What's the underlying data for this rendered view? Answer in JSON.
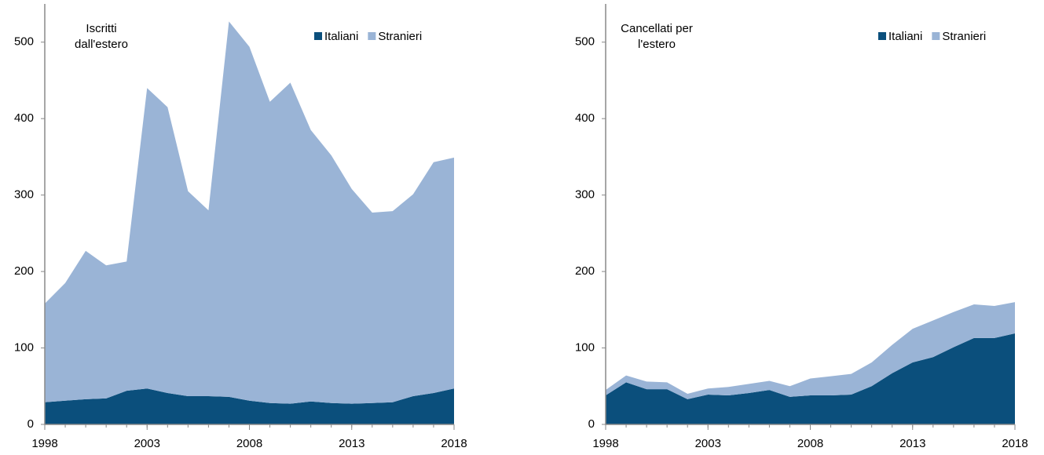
{
  "chart_data": [
    {
      "type": "area",
      "stacked": true,
      "title": [
        "Iscritti",
        "dall'estero"
      ],
      "x": [
        1998,
        1999,
        2000,
        2001,
        2002,
        2003,
        2004,
        2005,
        2006,
        2007,
        2008,
        2009,
        2010,
        2011,
        2012,
        2013,
        2014,
        2015,
        2016,
        2017,
        2018
      ],
      "series": [
        {
          "name": "Italiani",
          "color": "#0b4f7c",
          "values": [
            29,
            31,
            33,
            34,
            44,
            47,
            41,
            37,
            37,
            36,
            31,
            28,
            27,
            30,
            28,
            27,
            28,
            29,
            37,
            41,
            47
          ]
        },
        {
          "name": "Stranieri",
          "color": "#9ab4d6",
          "values": [
            129,
            154,
            194,
            174,
            169,
            393,
            374,
            268,
            243,
            491,
            463,
            394,
            420,
            355,
            324,
            281,
            249,
            250,
            264,
            302,
            302
          ]
        }
      ],
      "xlim": [
        1998,
        2018
      ],
      "xticks": [
        1998,
        2003,
        2008,
        2013,
        2018
      ],
      "ylim": [
        0,
        550
      ],
      "yticks": [
        0,
        100,
        200,
        300,
        400,
        500
      ],
      "legend": "top-right"
    },
    {
      "type": "area",
      "stacked": true,
      "title": [
        "Cancellati per",
        "l'estero"
      ],
      "x": [
        1998,
        1999,
        2000,
        2001,
        2002,
        2003,
        2004,
        2005,
        2006,
        2007,
        2008,
        2009,
        2010,
        2011,
        2012,
        2013,
        2014,
        2015,
        2016,
        2017,
        2018
      ],
      "series": [
        {
          "name": "Italiani",
          "color": "#0b4f7c",
          "values": [
            38,
            55,
            46,
            46,
            33,
            39,
            38,
            41,
            45,
            36,
            38,
            38,
            39,
            50,
            67,
            81,
            88,
            101,
            113,
            113,
            119
          ]
        },
        {
          "name": "Stranieri",
          "color": "#9ab4d6",
          "values": [
            7,
            9,
            10,
            9,
            7,
            8,
            11,
            12,
            12,
            14,
            22,
            25,
            27,
            31,
            37,
            44,
            48,
            46,
            44,
            42,
            41
          ]
        }
      ],
      "xlim": [
        1998,
        2018
      ],
      "xticks": [
        1998,
        2003,
        2008,
        2013,
        2018
      ],
      "ylim": [
        0,
        550
      ],
      "yticks": [
        0,
        100,
        200,
        300,
        400,
        500
      ],
      "legend": "top-right"
    }
  ]
}
